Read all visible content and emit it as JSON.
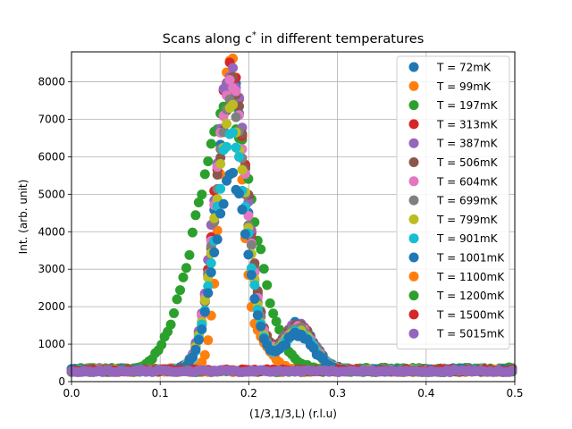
{
  "chart_data": {
    "type": "scatter",
    "title": "Scans along c",
    "title_sup": "*",
    "title_rest": " in different temperatures",
    "xlabel": "(1/3,1/3,L) (r.l.u)",
    "ylabel": "Int. (arb. unit)",
    "xlim": [
      0,
      0.5
    ],
    "ylim": [
      0,
      8800
    ],
    "xticks": [
      0.0,
      0.1,
      0.2,
      0.3,
      0.4,
      0.5
    ],
    "xtick_labels": [
      "0.0",
      "0.1",
      "0.2",
      "0.3",
      "0.4",
      "0.5"
    ],
    "yticks": [
      0,
      1000,
      2000,
      3000,
      4000,
      5000,
      6000,
      7000,
      8000
    ],
    "ytick_labels": [
      "0",
      "1000",
      "2000",
      "3000",
      "4000",
      "5000",
      "6000",
      "7000",
      "8000"
    ],
    "grid": true,
    "legend_position": "top-right",
    "series": [
      {
        "name": "T = 72mK",
        "color": "#1f77b4",
        "peak": 7700,
        "center": 0.18,
        "width": 0.018,
        "second_peak": 1550,
        "background": 330
      },
      {
        "name": "T = 99mK",
        "color": "#ff7f0e",
        "peak": 8350,
        "center": 0.18,
        "width": 0.012,
        "second_peak": 0,
        "background": 320
      },
      {
        "name": "T = 197mK",
        "color": "#2ca02c",
        "peak": 7000,
        "center": 0.175,
        "width": 0.03,
        "second_peak": 0,
        "background": 340
      },
      {
        "name": "T = 313mK",
        "color": "#d62728",
        "peak": 8000,
        "center": 0.18,
        "width": 0.018,
        "second_peak": 1500,
        "background": 300
      },
      {
        "name": "T = 387mK",
        "color": "#9467bd",
        "peak": 8100,
        "center": 0.18,
        "width": 0.018,
        "second_peak": 1550,
        "background": 290
      },
      {
        "name": "T = 506mK",
        "color": "#8c564b",
        "peak": 7600,
        "center": 0.181,
        "width": 0.018,
        "second_peak": 1500,
        "background": 300
      },
      {
        "name": "T = 604mK",
        "color": "#e377c2",
        "peak": 7600,
        "center": 0.18,
        "width": 0.018,
        "second_peak": 1450,
        "background": 300
      },
      {
        "name": "T = 699mK",
        "color": "#7f7f7f",
        "peak": 7200,
        "center": 0.18,
        "width": 0.018,
        "second_peak": 1400,
        "background": 300
      },
      {
        "name": "T = 799mK",
        "color": "#bcbd22",
        "peak": 6900,
        "center": 0.18,
        "width": 0.018,
        "second_peak": 1350,
        "background": 300
      },
      {
        "name": "T = 901mK",
        "color": "#17becf",
        "peak": 6300,
        "center": 0.18,
        "width": 0.018,
        "second_peak": 1300,
        "background": 300
      },
      {
        "name": "T = 1001mK",
        "color": "#1f77b4",
        "peak": 5100,
        "center": 0.18,
        "width": 0.019,
        "second_peak": 1250,
        "background": 300
      },
      {
        "name": "T = 1100mK",
        "color": "#ff7f0e",
        "peak": 0,
        "center": 0.18,
        "width": 0.018,
        "second_peak": 0,
        "background": 280
      },
      {
        "name": "T = 1200mK",
        "color": "#2ca02c",
        "peak": 0,
        "center": 0.18,
        "width": 0.018,
        "second_peak": 0,
        "background": 280
      },
      {
        "name": "T = 1500mK",
        "color": "#d62728",
        "peak": 0,
        "center": 0.18,
        "width": 0.018,
        "second_peak": 0,
        "background": 300
      },
      {
        "name": "T = 5015mK",
        "color": "#9467bd",
        "peak": 0,
        "center": 0.18,
        "width": 0.018,
        "second_peak": 0,
        "background": 280
      }
    ]
  }
}
